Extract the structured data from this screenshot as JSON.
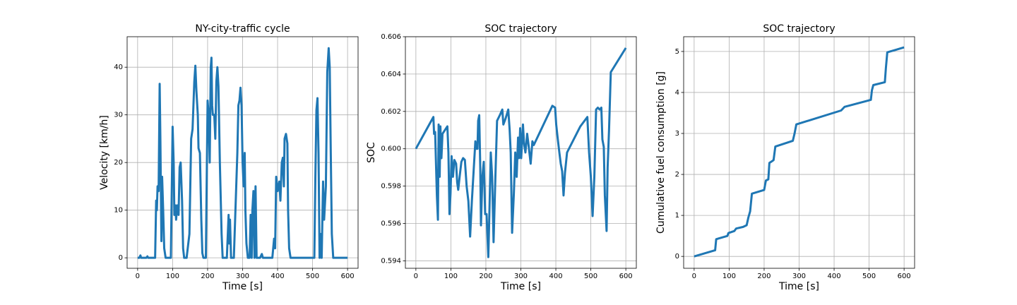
{
  "chart_data": [
    {
      "type": "line",
      "title": "NY-city-traffic cycle",
      "xlabel": "Time [s]",
      "ylabel": "Velocity [km/h]",
      "color": "#1f77b4",
      "grid": true,
      "xlim": [
        -30,
        630
      ],
      "ylim": [
        -2.2,
        46.4
      ],
      "xticks": [
        0,
        100,
        200,
        300,
        400,
        500,
        600
      ],
      "yticks": [
        0,
        10,
        20,
        30,
        40
      ],
      "x": [
        0,
        5,
        8,
        10,
        25,
        28,
        30,
        50,
        53,
        55,
        57,
        60,
        63,
        65,
        68,
        70,
        73,
        76,
        80,
        95,
        100,
        103,
        105,
        108,
        110,
        113,
        117,
        120,
        123,
        127,
        130,
        133,
        140,
        148,
        153,
        157,
        162,
        165,
        168,
        172,
        174,
        178,
        182,
        185,
        188,
        195,
        200,
        203,
        206,
        209,
        211,
        213,
        215,
        219,
        222,
        225,
        228,
        231,
        235,
        240,
        243,
        255,
        260,
        262,
        264,
        267,
        275,
        285,
        288,
        291,
        294,
        297,
        300,
        303,
        306,
        308,
        311,
        315,
        320,
        323,
        326,
        328,
        331,
        334,
        337,
        340,
        350,
        355,
        358,
        385,
        390,
        393,
        396,
        400,
        405,
        408,
        412,
        415,
        418,
        420,
        424,
        428,
        430,
        433,
        437,
        440,
        505,
        508,
        511,
        514,
        517,
        520,
        523,
        526,
        530,
        533,
        538,
        542,
        546,
        549,
        552,
        555,
        559,
        600
      ],
      "values": [
        0,
        0,
        0.5,
        0,
        0,
        0.3,
        0,
        0,
        12,
        10,
        15,
        14,
        36.5,
        25,
        3.5,
        17,
        10,
        2,
        0,
        0,
        27.5,
        20,
        9,
        11,
        8,
        11,
        9,
        19,
        20,
        12,
        2,
        0,
        0,
        5,
        25,
        27,
        37,
        40.3,
        35,
        30,
        23,
        22,
        8,
        1,
        0,
        0,
        33,
        30,
        20,
        40,
        42,
        32,
        30,
        30,
        25,
        37,
        40,
        36,
        20,
        5,
        0,
        0,
        9,
        3,
        8,
        0,
        0,
        22,
        32,
        33,
        35.7,
        32,
        20,
        15,
        22,
        10,
        3,
        0,
        0,
        9,
        0,
        10,
        14,
        0,
        15,
        0,
        0,
        0.8,
        0,
        0,
        4,
        2,
        17,
        14,
        16,
        12,
        20,
        21,
        15,
        25,
        26,
        24,
        10,
        2,
        0,
        0,
        0,
        17,
        31,
        33.5,
        22,
        0,
        5,
        0,
        16,
        8,
        15,
        39,
        44,
        40,
        22,
        5,
        0,
        0
      ]
    },
    {
      "type": "line",
      "title": "SOC trajectory",
      "xlabel": "Time [s]",
      "ylabel": "SOC",
      "color": "#1f77b4",
      "grid": true,
      "xlim": [
        -30,
        630
      ],
      "ylim": [
        0.5936,
        0.606
      ],
      "xticks": [
        0,
        100,
        200,
        300,
        400,
        500,
        600
      ],
      "yticks": [
        0.594,
        0.596,
        0.598,
        {
          "value": 0.6,
          "label": "0.600"
        },
        0.602,
        0.604,
        0.606
      ],
      "x": [
        0,
        50,
        52,
        55,
        60,
        63,
        65,
        68,
        70,
        73,
        76,
        90,
        93,
        96,
        99,
        102,
        106,
        110,
        115,
        118,
        121,
        125,
        130,
        135,
        140,
        145,
        150,
        155,
        160,
        165,
        170,
        173,
        176,
        178,
        181,
        184,
        186,
        190,
        194,
        198,
        202,
        207,
        210,
        214,
        218,
        222,
        228,
        232,
        240,
        247,
        250,
        256,
        264,
        268,
        271,
        275,
        280,
        284,
        288,
        292,
        295,
        298,
        301,
        306,
        309,
        313,
        318,
        322,
        328,
        333,
        337,
        390,
        398,
        401,
        405,
        410,
        414,
        418,
        422,
        426,
        432,
        470,
        490,
        495,
        500,
        505,
        510,
        515,
        520,
        525,
        530,
        533,
        537,
        540,
        545,
        548,
        552,
        557,
        600
      ],
      "values": [
        0.6,
        0.6017,
        0.6008,
        0.6009,
        0.5975,
        0.5962,
        0.6013,
        0.5985,
        0.6012,
        0.5995,
        0.6008,
        0.6012,
        0.5998,
        0.5965,
        0.5976,
        0.5996,
        0.5985,
        0.5994,
        0.5992,
        0.5982,
        0.5978,
        0.5985,
        0.5993,
        0.5995,
        0.5994,
        0.598,
        0.5972,
        0.5953,
        0.5972,
        0.5988,
        0.6004,
        0.6,
        0.6,
        0.6015,
        0.6018,
        0.599,
        0.5959,
        0.5985,
        0.5993,
        0.5965,
        0.5965,
        0.5942,
        0.5965,
        0.5998,
        0.5985,
        0.595,
        0.599,
        0.6015,
        0.6018,
        0.6021,
        0.6013,
        0.6016,
        0.6021,
        0.601,
        0.5998,
        0.5955,
        0.5976,
        0.5998,
        0.5985,
        0.6006,
        0.5995,
        0.6011,
        0.5995,
        0.6013,
        0.6003,
        0.5998,
        0.6008,
        0.6002,
        0.5992,
        0.6004,
        0.6002,
        0.6023,
        0.6022,
        0.6013,
        0.6006,
        0.5998,
        0.5992,
        0.5988,
        0.5975,
        0.5987,
        0.5998,
        0.6012,
        0.6017,
        0.5998,
        0.5985,
        0.5964,
        0.5985,
        0.6021,
        0.6022,
        0.6021,
        0.6022,
        0.6005,
        0.6001,
        0.5975,
        0.5956,
        0.599,
        0.601,
        0.6041,
        0.6054
      ]
    },
    {
      "type": "line",
      "title": "SOC trajectory",
      "xlabel": "Time [s]",
      "ylabel": "Cumulative fuel consumption [g]",
      "color": "#1f77b4",
      "grid": true,
      "xlim": [
        -30,
        630
      ],
      "ylim": [
        -0.29,
        5.36
      ],
      "xticks": [
        0,
        100,
        200,
        300,
        400,
        500,
        600
      ],
      "yticks": [
        0,
        1,
        2,
        3,
        4,
        5
      ],
      "x": [
        0,
        60,
        63,
        95,
        98,
        115,
        120,
        140,
        150,
        155,
        160,
        165,
        200,
        205,
        212,
        215,
        222,
        227,
        232,
        282,
        287,
        292,
        420,
        430,
        505,
        508,
        512,
        545,
        548,
        552,
        600
      ],
      "values": [
        0,
        0.15,
        0.42,
        0.5,
        0.57,
        0.62,
        0.68,
        0.72,
        0.76,
        0.95,
        1.1,
        1.53,
        1.62,
        1.85,
        1.88,
        2.28,
        2.32,
        2.35,
        2.68,
        2.82,
        3.0,
        3.22,
        3.56,
        3.65,
        3.82,
        4.05,
        4.18,
        4.25,
        4.6,
        4.98,
        5.1
      ]
    }
  ]
}
